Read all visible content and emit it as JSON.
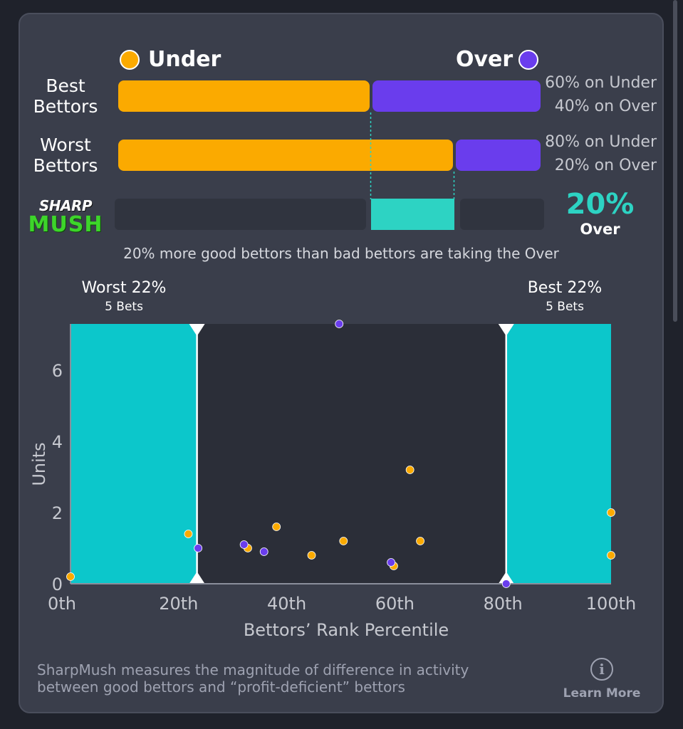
{
  "legend": {
    "under_label": "Under",
    "over_label": "Over"
  },
  "colors": {
    "under": "#fbaa00",
    "over": "#6a3ded",
    "teal": "#0cc7cb",
    "sharp": "#2dd3c3",
    "logo_green": "#3dd52a"
  },
  "rows": [
    {
      "label_line1": "Best",
      "label_line2": "Bettors",
      "under_pct": 60,
      "over_pct": 40,
      "under_text": "60% on Under",
      "over_text": "40% on Over"
    },
    {
      "label_line1": "Worst",
      "label_line2": "Bettors",
      "under_pct": 80,
      "over_pct": 20,
      "under_text": "80% on Under",
      "over_text": "20% on Over"
    }
  ],
  "logo": {
    "line1": "SHARP",
    "line2": "MUSH"
  },
  "sharp": {
    "value_text": "20%",
    "side_label": "Over",
    "value": 20
  },
  "caption": "20% more good bettors than bad bettors are taking the Over",
  "chart_data": {
    "type": "scatter",
    "xlabel": "Bettors’ Rank Percentile",
    "ylabel": "Units",
    "xlim": [
      0,
      100
    ],
    "ylim": [
      0,
      7.3
    ],
    "x_ticks": [
      0,
      20,
      40,
      60,
      80,
      100
    ],
    "x_tick_labels": [
      "0th",
      "20th",
      "40th",
      "60th",
      "80th",
      "100th"
    ],
    "y_ticks": [
      0,
      2,
      4,
      6
    ],
    "y_tick_labels": [
      "0",
      "2",
      "4",
      "6"
    ],
    "grid": false,
    "regions": [
      {
        "title": "Worst 22%",
        "subtitle": "5 Bets",
        "x_start": 0,
        "x_end": 23.4
      },
      {
        "title": "Best 22%",
        "subtitle": "5 Bets",
        "x_start": 80.6,
        "x_end": 100
      }
    ],
    "series": [
      {
        "name": "Under",
        "color": "#fbaa00",
        "points": [
          {
            "x": 0,
            "y": 0.2
          },
          {
            "x": 21.8,
            "y": 1.4
          },
          {
            "x": 32.8,
            "y": 1.0
          },
          {
            "x": 38.1,
            "y": 1.6
          },
          {
            "x": 44.6,
            "y": 0.8
          },
          {
            "x": 50.5,
            "y": 1.2
          },
          {
            "x": 59.8,
            "y": 0.5
          },
          {
            "x": 62.8,
            "y": 3.2
          },
          {
            "x": 64.7,
            "y": 1.2
          },
          {
            "x": 100,
            "y": 2.0
          },
          {
            "x": 100,
            "y": 0.8
          }
        ]
      },
      {
        "name": "Over",
        "color": "#6a3ded",
        "points": [
          {
            "x": 23.6,
            "y": 1.0
          },
          {
            "x": 32.1,
            "y": 1.1
          },
          {
            "x": 35.8,
            "y": 0.9
          },
          {
            "x": 49.7,
            "y": 7.3
          },
          {
            "x": 59.3,
            "y": 0.6
          },
          {
            "x": 80.6,
            "y": 0.0
          }
        ]
      }
    ]
  },
  "footer": {
    "line1": "SharpMush measures the magnitude of difference in activity",
    "line2": "between good bettors and “profit-deficient” bettors",
    "learn_more": "Learn More",
    "info_symbol": "i"
  }
}
